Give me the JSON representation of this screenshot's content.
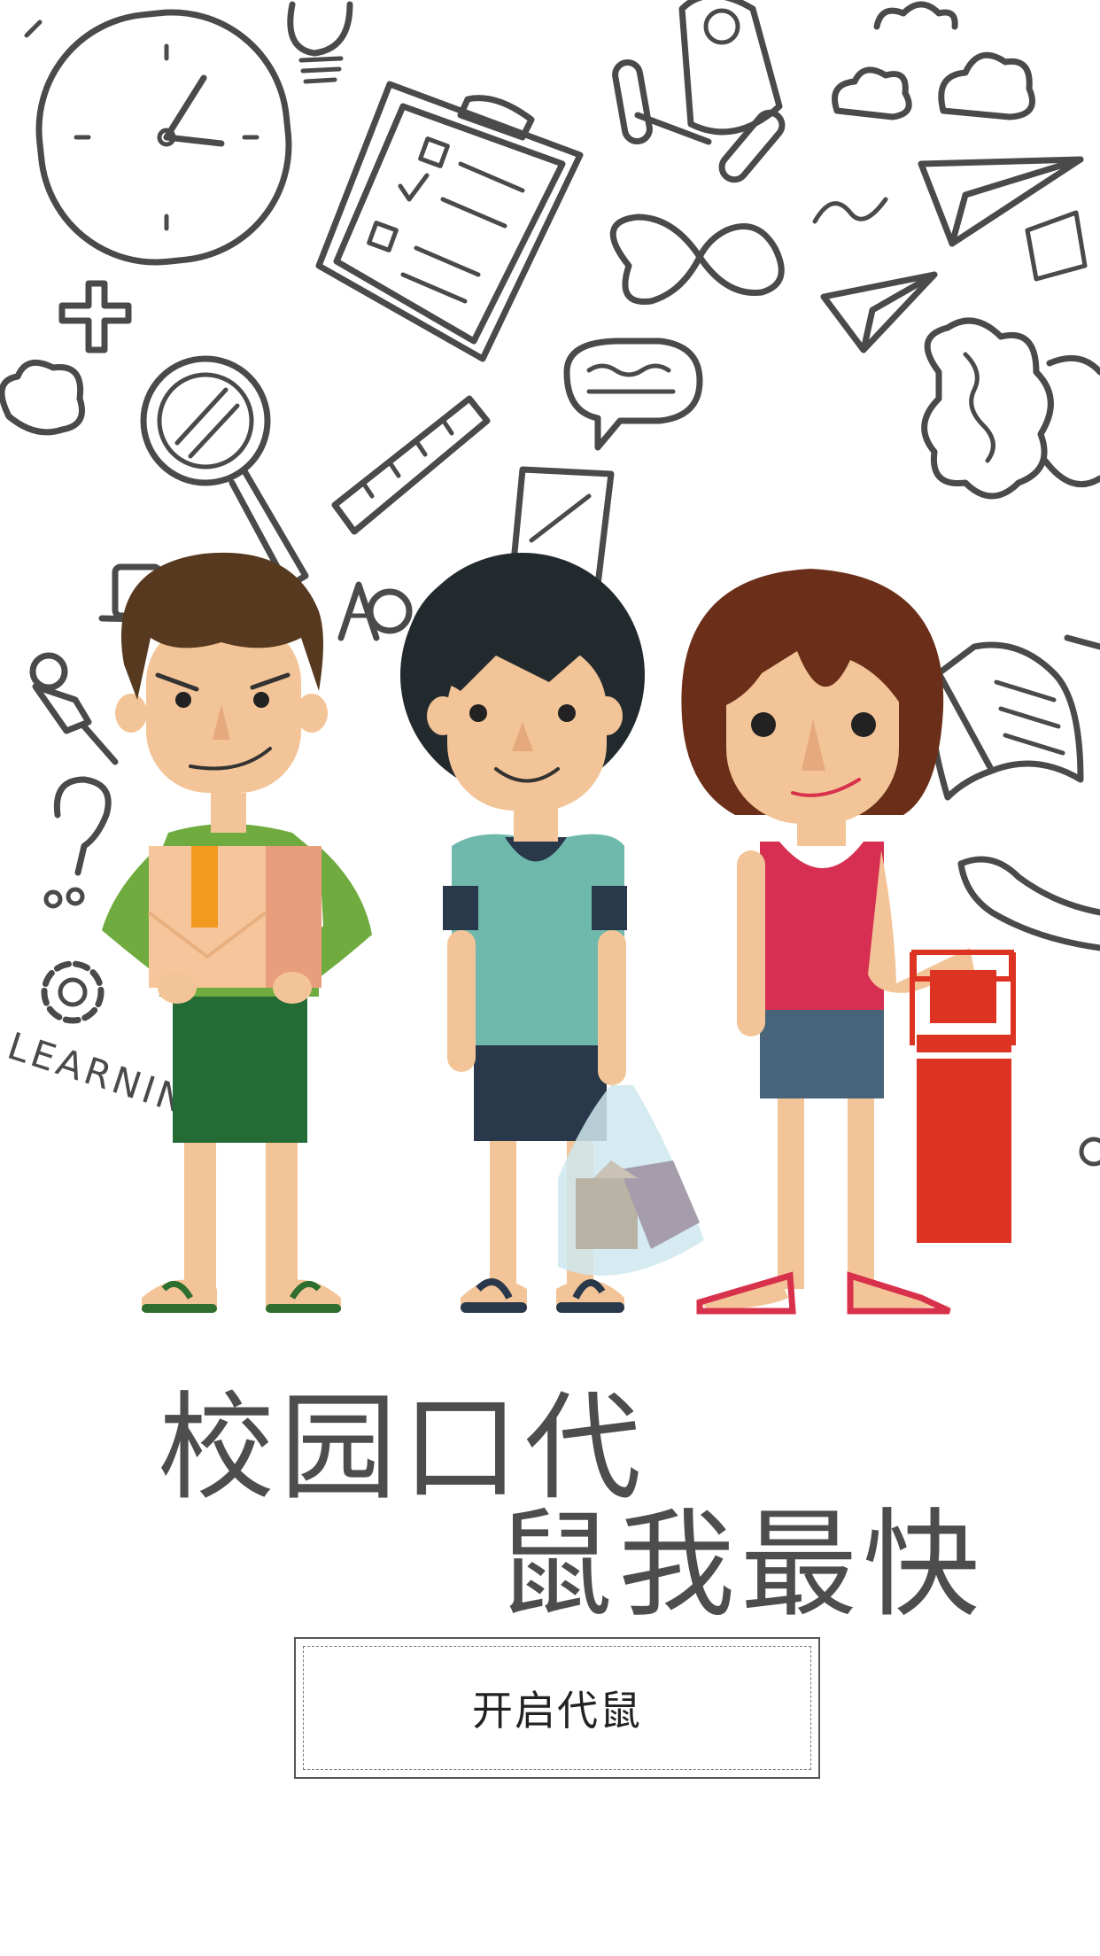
{
  "colors": {
    "line": "#4a4a4a",
    "skin": "#f3c497",
    "green_shirt": "#6fab3f",
    "teal_shirt": "#6fb8ac",
    "pink_top": "#d62f51",
    "red_bottle": "#dd3322"
  },
  "background": {
    "doodle_word": "LEARNING",
    "icons": [
      "clock-icon",
      "lightbulb-icon",
      "clipboard-icon",
      "rocket-icon",
      "cloud-icon",
      "paper-plane-icon",
      "infinity-icon",
      "plus-icon",
      "magnifier-icon",
      "ruler-icon",
      "speech-bubble-icon",
      "brain-icon",
      "book-icon",
      "question-mark-icon",
      "gear-icon",
      "pushpin-icon",
      "hat-icon",
      "letter-a-icon"
    ]
  },
  "slogan": {
    "line1": "校园口代",
    "line2": "鼠我最快"
  },
  "start_button": {
    "label": "开启代鼠"
  }
}
